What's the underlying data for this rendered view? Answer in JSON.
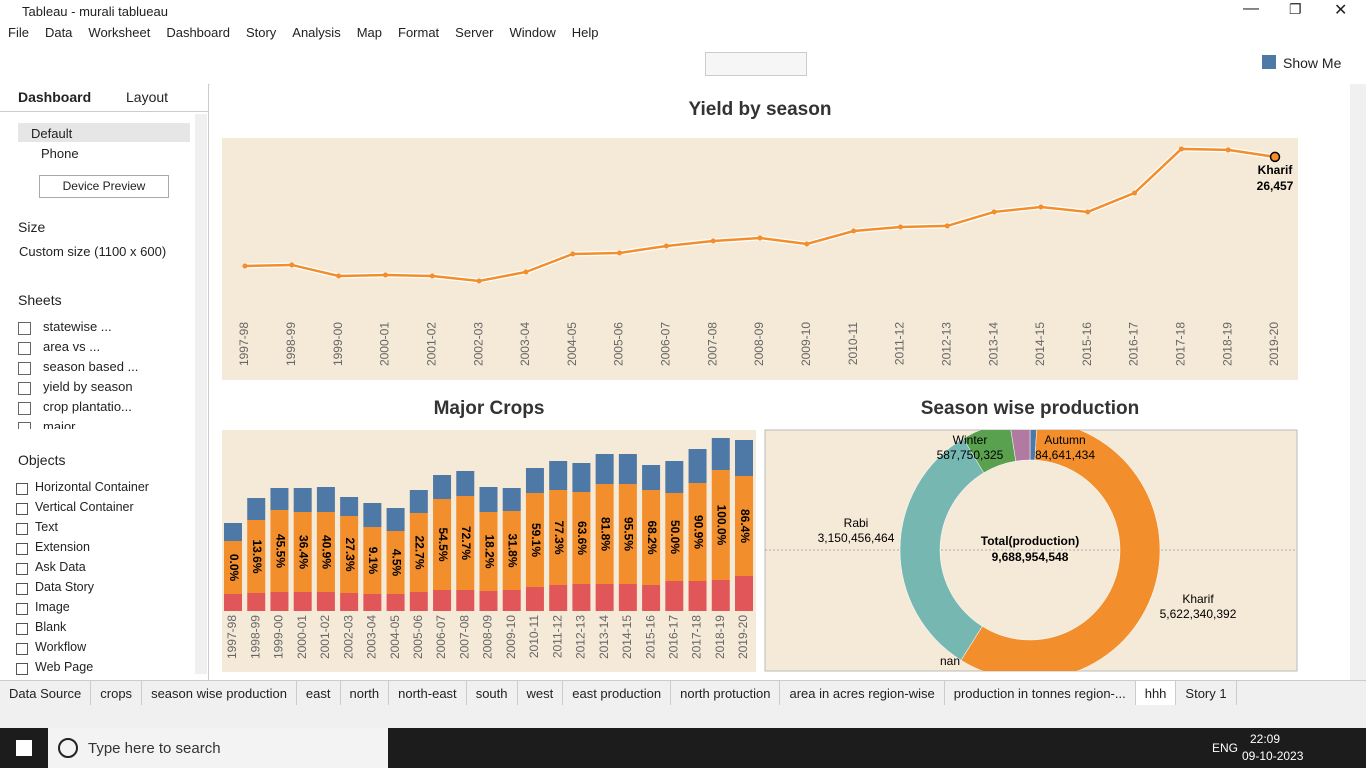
{
  "window": {
    "title": "Tableau - murali tablueau"
  },
  "menu": [
    "File",
    "Data",
    "Worksheet",
    "Dashboard",
    "Story",
    "Analysis",
    "Map",
    "Format",
    "Server",
    "Window",
    "Help"
  ],
  "toolbar": {
    "show_me": "Show Me"
  },
  "sidebar": {
    "tabs": [
      "Dashboard",
      "Layout"
    ],
    "devices": [
      "Default",
      "Phone"
    ],
    "device_preview": "Device Preview",
    "size_title": "Size",
    "size_value": "Custom size (1100 x 600)",
    "sheets_title": "Sheets",
    "sheets": [
      "statewise ...",
      "area vs ...",
      "season based ...",
      "yield by season",
      "crop plantatio...",
      "major ..."
    ],
    "objects_title": "Objects",
    "objects": [
      "Horizontal Container",
      "Vertical Container",
      "Text",
      "Extension",
      "Ask Data",
      "Data Story",
      "Image",
      "Blank",
      "Workflow",
      "Web Page"
    ]
  },
  "tabs": [
    "Data Source",
    "crops",
    "season wise production",
    "east",
    "north",
    "north-east",
    "south",
    "west",
    "east production",
    "north protuction",
    "area in acres region-wise",
    "production in tonnes region-...",
    "hhh",
    "Story 1"
  ],
  "taskbar": {
    "search": "Type here to search",
    "lang": "ENG",
    "time": "22:09",
    "date": "09-10-2023"
  },
  "chart_data": [
    {
      "type": "line",
      "title": "Yield by season",
      "categories": [
        "1997-98",
        "1998-99",
        "1999-00",
        "2000-01",
        "2001-02",
        "2002-03",
        "2003-04",
        "2004-05",
        "2005-06",
        "2006-07",
        "2007-08",
        "2008-09",
        "2009-10",
        "2010-11",
        "2011-12",
        "2012-13",
        "2013-14",
        "2014-15",
        "2015-16",
        "2016-17",
        "2017-18",
        "2018-19",
        "2019-20"
      ],
      "series": [
        {
          "name": "Kharif",
          "color": "#f28e2b",
          "values": [
            8760,
            8930,
            7140,
            7300,
            7140,
            6330,
            7790,
            10710,
            10870,
            12010,
            12820,
            13310,
            12330,
            14440,
            15090,
            15260,
            17530,
            18340,
            17530,
            20610,
            27750,
            27590,
            26457
          ],
          "value_labels": [
            null,
            null,
            null,
            null,
            null,
            null,
            null,
            null,
            null,
            null,
            null,
            null,
            null,
            null,
            null,
            null,
            null,
            null,
            null,
            null,
            null,
            null,
            "26,457"
          ]
        }
      ],
      "ylim": [
        0,
        29200
      ]
    },
    {
      "type": "bar",
      "stacked": true,
      "title": "Major Crops",
      "categories": [
        "1997-98",
        "1998-99",
        "1999-00",
        "2000-01",
        "2001-02",
        "2002-03",
        "2003-04",
        "2004-05",
        "2005-06",
        "2006-07",
        "2007-08",
        "2008-09",
        "2009-10",
        "2010-11",
        "2011-12",
        "2012-13",
        "2013-14",
        "2014-15",
        "2015-16",
        "2016-17",
        "2017-18",
        "2018-19",
        "2019-20"
      ],
      "series": [
        {
          "color": "#e15759",
          "values": [
            17,
            18,
            19,
            19,
            19,
            18,
            17,
            17,
            19,
            21,
            21,
            20,
            21,
            24,
            26,
            27,
            27,
            27,
            26,
            30,
            30,
            31,
            35
          ]
        },
        {
          "color": "#f28e2b",
          "values": [
            53,
            73,
            82,
            80,
            80,
            77,
            67,
            63,
            79,
            91,
            94,
            79,
            79,
            94,
            95,
            92,
            100,
            100,
            95,
            88,
            98,
            110,
            100
          ],
          "segment_labels": [
            "0.0%",
            "13.6%",
            "45.5%",
            "36.4%",
            "40.9%",
            "27.3%",
            "9.1%",
            "4.5%",
            "22.7%",
            "54.5%",
            "72.7%",
            "18.2%",
            "31.8%",
            "59.1%",
            "77.3%",
            "63.6%",
            "81.8%",
            "95.5%",
            "68.2%",
            "50.0%",
            "90.9%",
            "100.0%",
            "86.4%"
          ]
        },
        {
          "color": "#4e79a7",
          "values": [
            18,
            22,
            22,
            24,
            25,
            19,
            24,
            23,
            23,
            24,
            25,
            25,
            23,
            25,
            29,
            29,
            30,
            30,
            25,
            32,
            34,
            32,
            36
          ]
        }
      ],
      "ylim": [
        0,
        180
      ]
    },
    {
      "type": "pie",
      "donut": true,
      "title": "Season wise production",
      "categories": [
        "Autumn",
        "Kharif",
        "nan",
        "Rabi",
        "Winter",
        null
      ],
      "values": [
        84641434,
        5622340392,
        0,
        3150456464,
        587750325,
        243765933
      ],
      "value_labels": [
        "84,641,434",
        "5,622,340,392",
        null,
        "3,150,456,464",
        "587,750,325",
        null
      ],
      "colors": [
        "#4e79a7",
        "#f28e2b",
        "#9c755f",
        "#76b7b2",
        "#59a14f",
        "#b07aa1"
      ],
      "total_label": "Total(production)",
      "total": 9688954548,
      "total_value_label": "9,688,954,548"
    }
  ]
}
